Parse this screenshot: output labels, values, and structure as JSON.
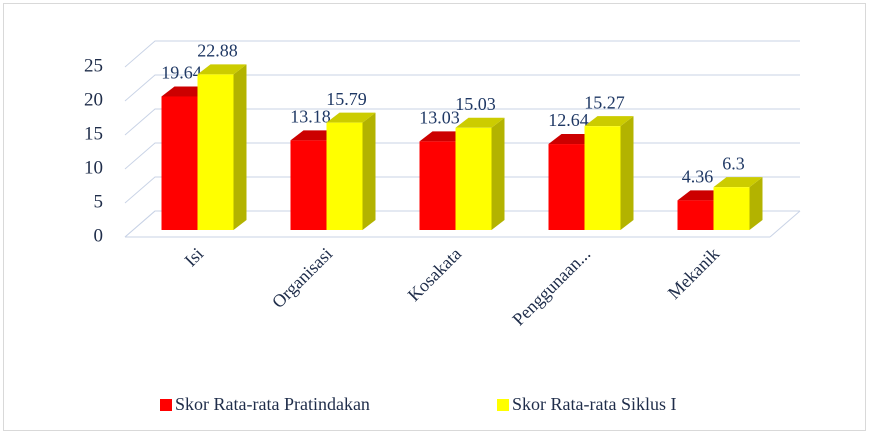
{
  "chart_data": {
    "type": "bar",
    "categories": [
      "Isi",
      "Organisasi",
      "Kosakata",
      "Penggunaan...",
      "Mekanik"
    ],
    "series": [
      {
        "name": "Skor Rata-rata Pratindakan",
        "color": "#ff0000",
        "values": [
          19.64,
          13.18,
          13.03,
          12.64,
          4.36
        ]
      },
      {
        "name": "Skor Rata-rata Siklus I",
        "color": "#ffff00",
        "values": [
          22.88,
          15.79,
          15.03,
          15.27,
          6.3
        ]
      }
    ],
    "ylim": [
      0,
      25
    ],
    "yticks": [
      0,
      5,
      10,
      15,
      20,
      25
    ],
    "grid": true,
    "legend": "bottom"
  }
}
